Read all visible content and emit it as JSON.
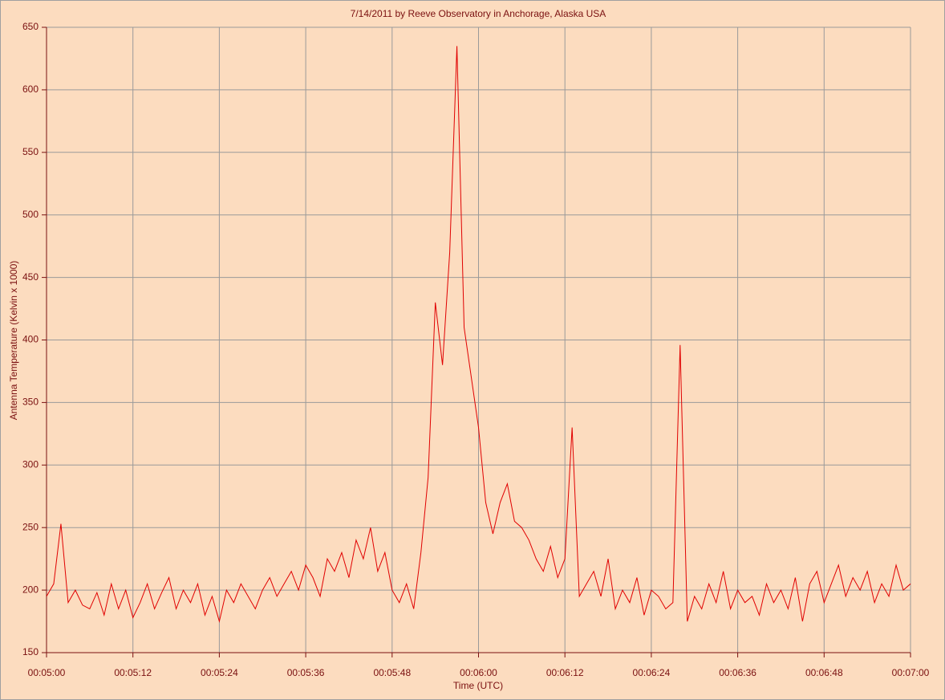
{
  "chart_data": {
    "type": "line",
    "title": "7/14/2011  by  Reeve Observatory  in  Anchorage, Alaska  USA",
    "x_label": "Time (UTC)",
    "y_label": "Antenna Temperature (Kelvin x 1000)",
    "color": "#e00000",
    "grid": true,
    "xlim": [
      300,
      420
    ],
    "xticks": [
      {
        "value": 300,
        "label": "00:05:00"
      },
      {
        "value": 312,
        "label": "00:05:12"
      },
      {
        "value": 324,
        "label": "00:05:24"
      },
      {
        "value": 336,
        "label": "00:05:36"
      },
      {
        "value": 348,
        "label": "00:05:48"
      },
      {
        "value": 360,
        "label": "00:06:00"
      },
      {
        "value": 372,
        "label": "00:06:12"
      },
      {
        "value": 384,
        "label": "00:06:24"
      },
      {
        "value": 396,
        "label": "00:06:36"
      },
      {
        "value": 408,
        "label": "00:06:48"
      },
      {
        "value": 420,
        "label": "00:07:00"
      }
    ],
    "ylim": [
      150,
      650
    ],
    "yticks": [
      150,
      200,
      250,
      300,
      350,
      400,
      450,
      500,
      550,
      600,
      650
    ],
    "x": [
      300,
      301,
      302,
      303,
      304,
      305,
      306,
      307,
      308,
      309,
      310,
      311,
      312,
      313,
      314,
      315,
      316,
      317,
      318,
      319,
      320,
      321,
      322,
      323,
      324,
      325,
      326,
      327,
      328,
      329,
      330,
      331,
      332,
      333,
      334,
      335,
      336,
      337,
      338,
      339,
      340,
      341,
      342,
      343,
      344,
      345,
      346,
      347,
      348,
      349,
      350,
      351,
      352,
      353,
      354,
      355,
      356,
      357,
      358,
      359,
      360,
      361,
      362,
      363,
      364,
      365,
      366,
      367,
      368,
      369,
      370,
      371,
      372,
      373,
      374,
      375,
      376,
      377,
      378,
      379,
      380,
      381,
      382,
      383,
      384,
      385,
      386,
      387,
      388,
      389,
      390,
      391,
      392,
      393,
      394,
      395,
      396,
      397,
      398,
      399,
      400,
      401,
      402,
      403,
      404,
      405,
      406,
      407,
      408,
      409,
      410,
      411,
      412,
      413,
      414,
      415,
      416,
      417,
      418,
      419,
      420
    ],
    "values": [
      195,
      205,
      253,
      190,
      200,
      188,
      185,
      198,
      180,
      205,
      185,
      200,
      178,
      190,
      205,
      185,
      198,
      210,
      185,
      200,
      190,
      205,
      180,
      195,
      175,
      200,
      190,
      205,
      195,
      185,
      200,
      210,
      195,
      205,
      215,
      200,
      220,
      210,
      195,
      225,
      215,
      230,
      210,
      240,
      225,
      250,
      215,
      230,
      200,
      190,
      205,
      185,
      230,
      290,
      430,
      380,
      470,
      635,
      410,
      370,
      330,
      270,
      245,
      270,
      285,
      255,
      250,
      240,
      225,
      215,
      235,
      210,
      225,
      330,
      195,
      205,
      215,
      195,
      225,
      185,
      200,
      190,
      210,
      180,
      200,
      195,
      185,
      190,
      396,
      175,
      195,
      185,
      205,
      190,
      215,
      185,
      200,
      190,
      195,
      180,
      205,
      190,
      200,
      185,
      210,
      175,
      205,
      215,
      190,
      205,
      220,
      195,
      210,
      200,
      215,
      190,
      205,
      195,
      220,
      200,
      205
    ]
  }
}
